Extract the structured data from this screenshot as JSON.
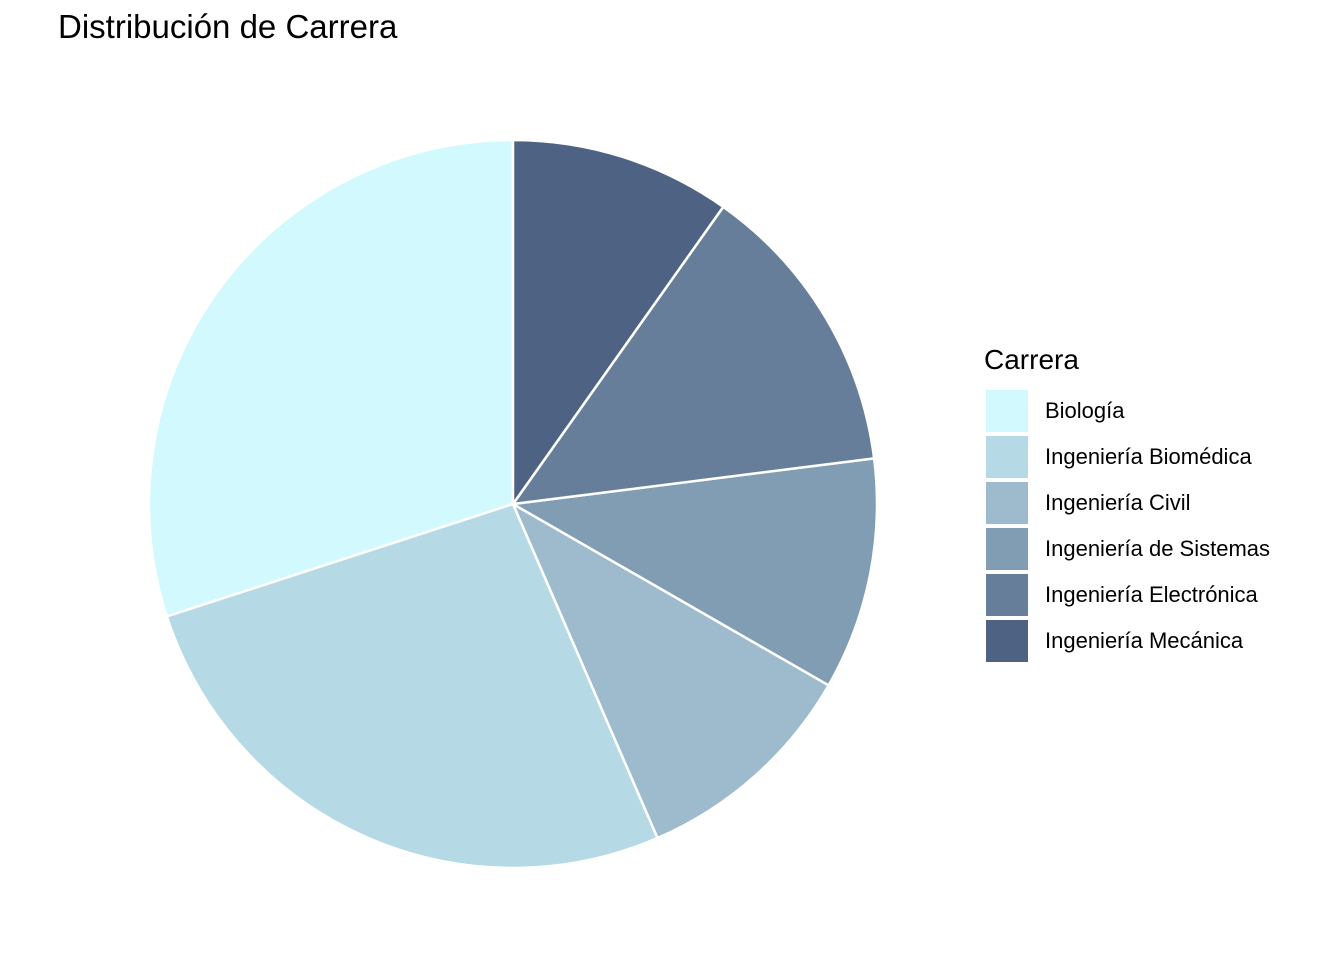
{
  "chart_data": {
    "type": "pie",
    "title": "Distribución de Carrera",
    "legend_title": "Carrera",
    "legend_position": "right",
    "start_angle": "12 o'clock",
    "direction": "counterclockwise",
    "categories": [
      "Biología",
      "Ingeniería Biomédica",
      "Ingeniería Civil",
      "Ingeniería de Sistemas",
      "Ingeniería Electrónica",
      "Ingeniería Mecánica"
    ],
    "values": [
      30,
      26.5,
      10.2,
      10.3,
      13.2,
      9.8
    ],
    "colors": [
      "#D2F9FD",
      "#B6DAE5",
      "#9DBBCC",
      "#819DB4",
      "#677E9A",
      "#4E6384"
    ]
  }
}
